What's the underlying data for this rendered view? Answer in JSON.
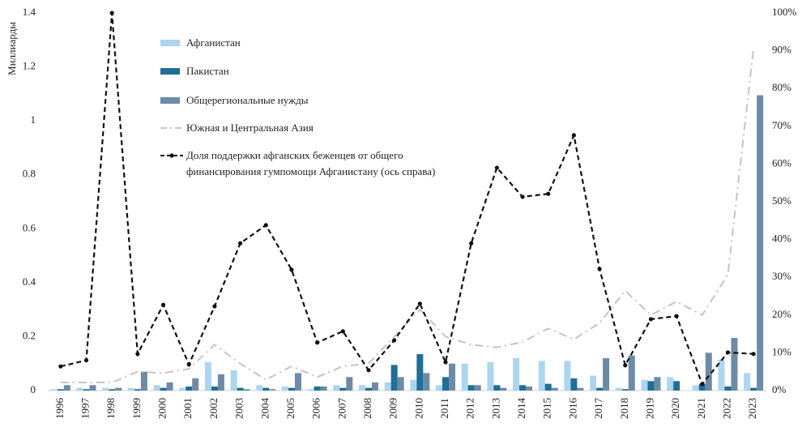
{
  "chart_data": {
    "type": "bar",
    "y_label": "Миллиарды",
    "categories": [
      "1996",
      "1997",
      "1998",
      "1999",
      "2000",
      "2001",
      "2002",
      "2003",
      "2004",
      "2005",
      "2006",
      "2007",
      "2008",
      "2009",
      "2010",
      "2011",
      "2012",
      "2013",
      "2014",
      "2015",
      "2016",
      "2017",
      "2018",
      "2019",
      "2020",
      "2021",
      "2022",
      "2023"
    ],
    "series": [
      {
        "name": "Афганистан",
        "type": "bar",
        "color": "#acd5ef",
        "values": [
          0.005,
          0.01,
          0.01,
          0.01,
          0.02,
          0.01,
          0.105,
          0.075,
          0.02,
          0.015,
          0.005,
          0.02,
          0.02,
          0.03,
          0.04,
          0.02,
          0.1,
          0.105,
          0.12,
          0.11,
          0.11,
          0.055,
          0.01,
          0.04,
          0.05,
          0.02,
          0.115,
          0.065
        ]
      },
      {
        "name": "Пакистан",
        "type": "bar",
        "color": "#1f6f96",
        "values": [
          0.005,
          0.005,
          0.005,
          0.005,
          0.01,
          0.015,
          0.015,
          0.01,
          0.01,
          0.01,
          0.015,
          0.01,
          0.01,
          0.095,
          0.135,
          0.05,
          0.02,
          0.02,
          0.02,
          0.025,
          0.045,
          0.01,
          0.005,
          0.035,
          0.035,
          0.025,
          0.015,
          0.01
        ]
      },
      {
        "name": "Общерегиональные нужды",
        "type": "bar",
        "color": "#6d8ba6",
        "values": [
          0.02,
          0.02,
          0.01,
          0.07,
          0.03,
          0.045,
          0.06,
          0.005,
          0.005,
          0.065,
          0.015,
          0.05,
          0.03,
          0.05,
          0.065,
          0.1,
          0.02,
          0.01,
          0.015,
          0.01,
          0.01,
          0.12,
          0.13,
          0.05,
          0,
          0.14,
          0.195,
          1.095
        ]
      },
      {
        "name": "Южная и Центральная Азия",
        "type": "line",
        "style": "dashdot",
        "color": "#c4c4c4",
        "values": [
          0.03,
          0.03,
          0.03,
          0.07,
          0.065,
          0.08,
          0.17,
          0.1,
          0.04,
          0.09,
          0.05,
          0.09,
          0.1,
          0.2,
          0.3,
          0.2,
          0.17,
          0.16,
          0.18,
          0.23,
          0.19,
          0.25,
          0.37,
          0.28,
          0.33,
          0.28,
          0.43,
          1.27
        ]
      },
      {
        "name": "Доля поддержки афганских беженцев от общего финансирования гумпомощи Афганистану (ось справа)",
        "type": "line",
        "style": "dashed",
        "axis": "y2",
        "color": "#111111",
        "values": [
          6.4,
          8,
          100,
          9.7,
          22.7,
          6.9,
          22.3,
          39,
          43.8,
          32,
          12.7,
          15.7,
          5.4,
          13.3,
          23,
          7.5,
          39,
          59,
          51.3,
          52.1,
          67.6,
          32.2,
          6.7,
          18.9,
          19.7,
          1.7,
          10.1,
          9.7
        ]
      }
    ],
    "ylim": [
      0,
      1.4
    ],
    "yticks": [
      0,
      0.2,
      0.4,
      0.6,
      0.8,
      1,
      1.2,
      1.4
    ],
    "y2lim": [
      0,
      100
    ],
    "y2ticks": [
      {
        "value": 0,
        "label": "0%"
      },
      {
        "value": 10,
        "label": "10%"
      },
      {
        "value": 20,
        "label": "20%"
      },
      {
        "value": 30,
        "label": "30%"
      },
      {
        "value": 40,
        "label": "40%"
      },
      {
        "value": 50,
        "label": "50%"
      },
      {
        "value": 60,
        "label": "60%"
      },
      {
        "value": 70,
        "label": "70%"
      },
      {
        "value": 80,
        "label": "80%"
      },
      {
        "value": 90,
        "label": "90%"
      },
      {
        "value": 100,
        "label": "100%"
      }
    ],
    "grid": false
  }
}
